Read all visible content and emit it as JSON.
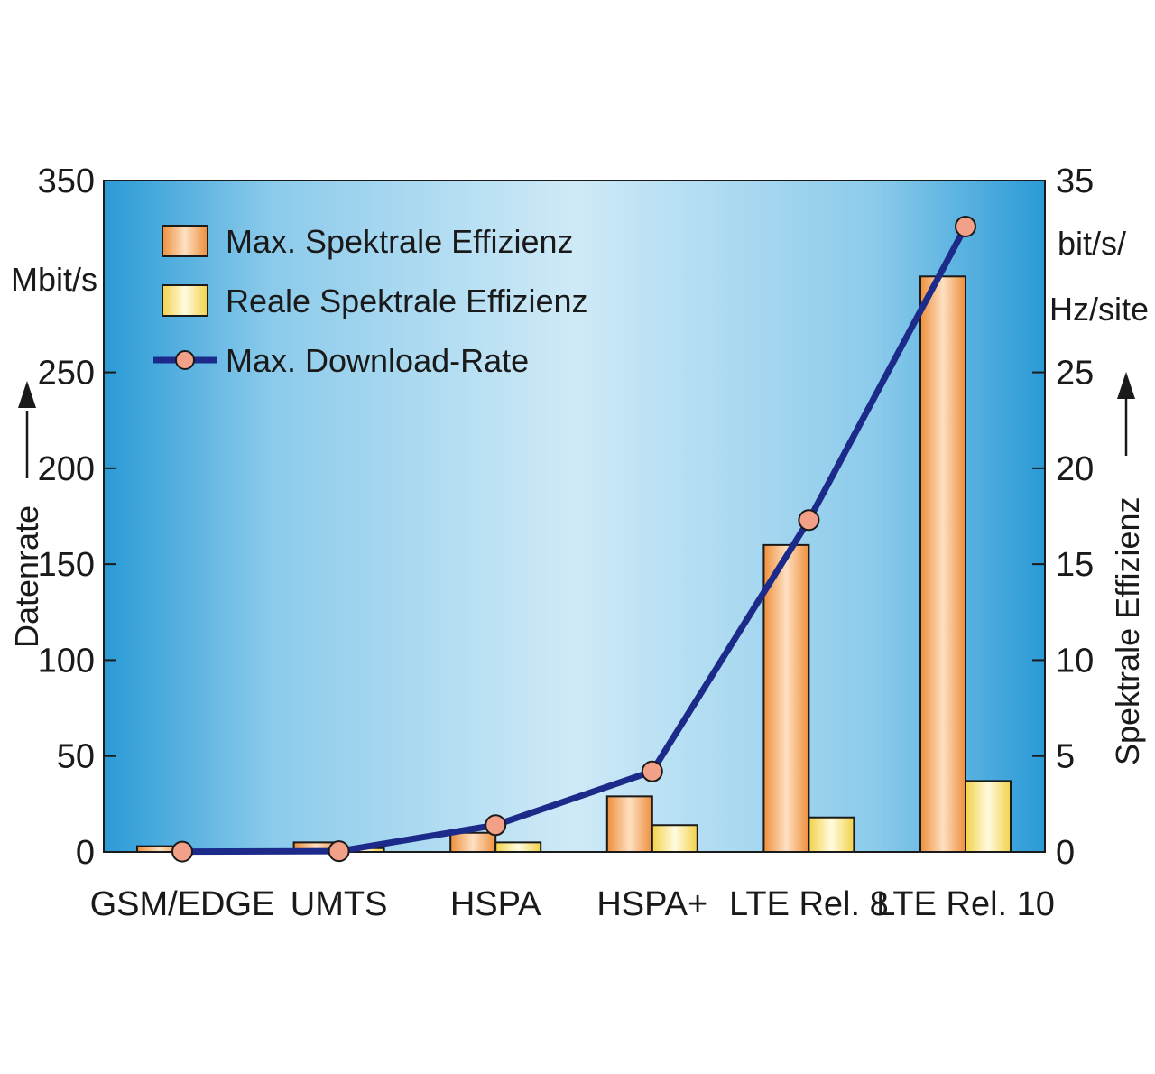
{
  "chart_data": {
    "type": "bar",
    "categories": [
      "GSM/EDGE",
      "UMTS",
      "HSPA",
      "HSPA+",
      "LTE Rel. 8",
      "LTE Rel. 10"
    ],
    "series": [
      {
        "name": "Max. Spektrale Effizienz",
        "type": "bar",
        "axis": "right",
        "values": [
          0.3,
          0.5,
          1.0,
          2.9,
          16.0,
          30.0
        ],
        "color": "#f4a35c"
      },
      {
        "name": "Reale Spektrale Effizienz",
        "type": "bar",
        "axis": "right",
        "values": [
          0.1,
          0.2,
          0.5,
          1.4,
          1.8,
          3.7
        ],
        "color": "#f7e27a"
      },
      {
        "name": "Max. Download-Rate",
        "type": "line",
        "axis": "left",
        "values": [
          0.2,
          0.4,
          14,
          42,
          173,
          326
        ],
        "color": "#1c2a8a",
        "marker_color": "#f2a088"
      }
    ],
    "left_axis": {
      "title": "Datenrate",
      "unit": "Mbit/s",
      "ylim": [
        0,
        350
      ],
      "ticks": [
        "0",
        "50",
        "100",
        "150",
        "200",
        "250",
        "350"
      ]
    },
    "right_axis": {
      "title": "Spektrale Effizienz",
      "unit_line1": "bit/s/",
      "unit_line2": "Hz/site",
      "ylim": [
        0,
        35
      ],
      "ticks": [
        "0",
        "5",
        "10",
        "15",
        "20",
        "25",
        "35"
      ]
    },
    "legend_position": "top-left",
    "grid": false,
    "background": "blue-gradient"
  }
}
